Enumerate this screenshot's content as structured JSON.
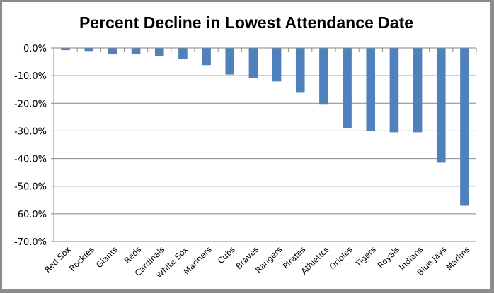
{
  "chart_data": {
    "type": "bar",
    "title": "Percent Decline in Lowest Attendance Date",
    "xlabel": "",
    "ylabel": "",
    "categories": [
      "Red Sox",
      "Rockies",
      "Giants",
      "Reds",
      "Cardinals",
      "White Sox",
      "Mariners",
      "Cubs",
      "Braves",
      "Rangers",
      "Pirates",
      "Athletics",
      "Orioles",
      "Tigers",
      "Royals",
      "Indians",
      "Blue Jays",
      "Marlins"
    ],
    "values": [
      -0.8,
      -1.1,
      -2.1,
      -2.1,
      -2.9,
      -4.1,
      -6.2,
      -9.6,
      -10.8,
      -12.1,
      -16.2,
      -20.5,
      -29.0,
      -30.0,
      -30.5,
      -30.5,
      -41.5,
      -57.1
    ],
    "value_unit": "%",
    "ylim": [
      -70,
      0
    ],
    "yticks": [
      0,
      -10,
      -20,
      -30,
      -40,
      -50,
      -60,
      -70
    ],
    "ytick_labels": [
      "0.0%",
      "-10.0%",
      "-20.0%",
      "-30.0%",
      "-40.0%",
      "-50.0%",
      "-60.0%",
      "-70.0%"
    ],
    "grid": true,
    "legend": "none",
    "bar_color": "#4f81bd",
    "grid_color": "#868686"
  }
}
